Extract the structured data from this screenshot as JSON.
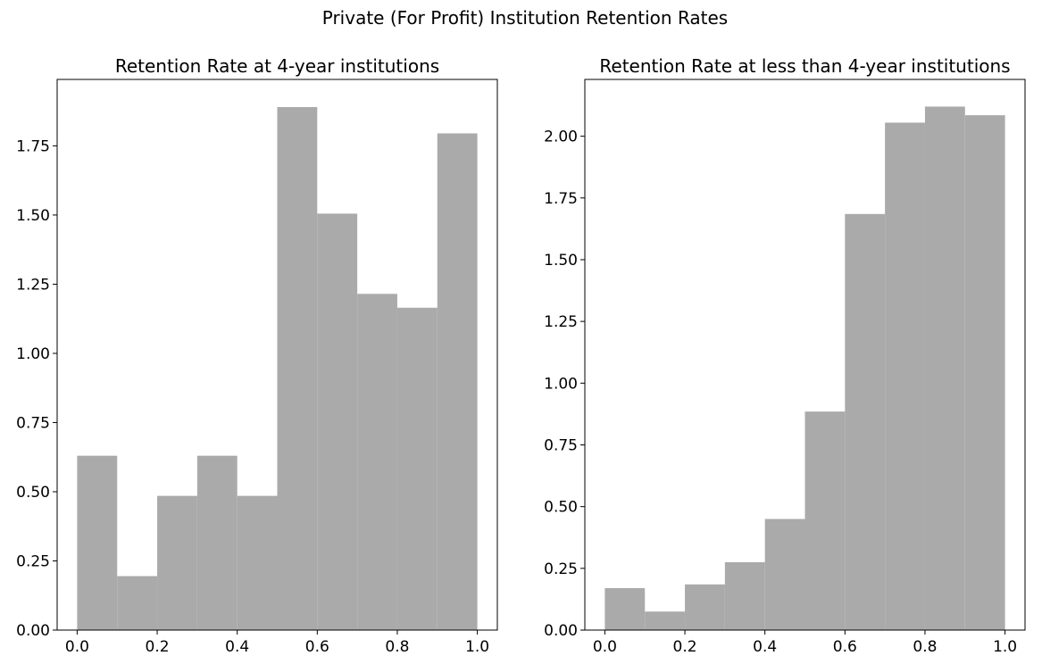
{
  "figure": {
    "suptitle": "Private (For Profit) Institution Retention Rates",
    "bar_color": "#aaaaaa"
  },
  "chart_data": [
    {
      "type": "bar",
      "subtype": "histogram",
      "title": "Retention Rate at 4-year institutions",
      "xlabel": "",
      "ylabel": "",
      "bin_edges": [
        0.0,
        0.1,
        0.2,
        0.3,
        0.4,
        0.5,
        0.6,
        0.7,
        0.8,
        0.9,
        1.0
      ],
      "values": [
        0.63,
        0.195,
        0.485,
        0.63,
        0.485,
        1.89,
        1.505,
        1.215,
        1.165,
        1.795
      ],
      "xlim": [
        -0.05,
        1.05
      ],
      "ylim": [
        0,
        1.99
      ],
      "xticks": [
        0.0,
        0.2,
        0.4,
        0.6,
        0.8,
        1.0
      ],
      "xtick_labels": [
        "0.0",
        "0.2",
        "0.4",
        "0.6",
        "0.8",
        "1.0"
      ],
      "yticks": [
        0.0,
        0.25,
        0.5,
        0.75,
        1.0,
        1.25,
        1.5,
        1.75
      ],
      "ytick_labels": [
        "0.00",
        "0.25",
        "0.50",
        "0.75",
        "1.00",
        "1.25",
        "1.50",
        "1.75"
      ],
      "grid": false,
      "color": "#aaaaaa"
    },
    {
      "type": "bar",
      "subtype": "histogram",
      "title": "Retention Rate at less than 4-year institutions",
      "xlabel": "",
      "ylabel": "",
      "bin_edges": [
        0.0,
        0.1,
        0.2,
        0.3,
        0.4,
        0.5,
        0.6,
        0.7,
        0.8,
        0.9,
        1.0
      ],
      "values": [
        0.17,
        0.075,
        0.185,
        0.275,
        0.45,
        0.885,
        1.685,
        2.055,
        2.12,
        2.085
      ],
      "xlim": [
        -0.05,
        1.05
      ],
      "ylim": [
        0,
        2.23
      ],
      "xticks": [
        0.0,
        0.2,
        0.4,
        0.6,
        0.8,
        1.0
      ],
      "xtick_labels": [
        "0.0",
        "0.2",
        "0.4",
        "0.6",
        "0.8",
        "1.0"
      ],
      "yticks": [
        0.0,
        0.25,
        0.5,
        0.75,
        1.0,
        1.25,
        1.5,
        1.75,
        2.0
      ],
      "ytick_labels": [
        "0.00",
        "0.25",
        "0.50",
        "0.75",
        "1.00",
        "1.25",
        "1.50",
        "1.75",
        "2.00"
      ],
      "grid": false,
      "color": "#aaaaaa"
    }
  ]
}
